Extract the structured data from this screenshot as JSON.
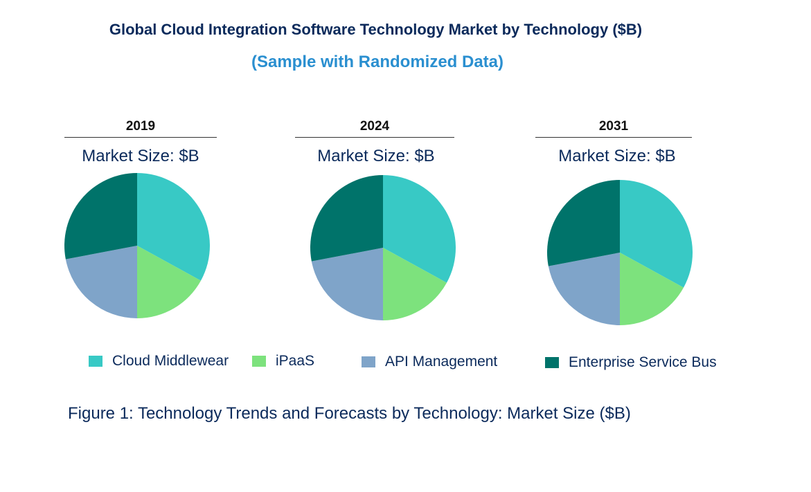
{
  "chart_data": {
    "type": "pie",
    "title": "Global Cloud Integration Software Technology Market by Technology ($B)",
    "subtitle": "(Sample with Randomized Data)",
    "caption": "Figure 1: Technology Trends and Forecasts by Technology: Market Size ($B)",
    "categories": [
      "Cloud Middlewear",
      "iPaaS",
      "API Management",
      "Enterprise Service Bus"
    ],
    "colors": [
      "#38c9c5",
      "#7de27d",
      "#7fa4c9",
      "#00736a"
    ],
    "legend_position": "bottom",
    "pies": [
      {
        "year": "2019",
        "label": "Market Size: $B",
        "values": [
          33,
          17,
          22,
          28
        ]
      },
      {
        "year": "2024",
        "label": "Market Size: $B",
        "values": [
          33,
          17,
          22,
          28
        ]
      },
      {
        "year": "2031",
        "label": "Market Size: $B",
        "values": [
          33,
          17,
          22,
          28
        ]
      }
    ]
  }
}
